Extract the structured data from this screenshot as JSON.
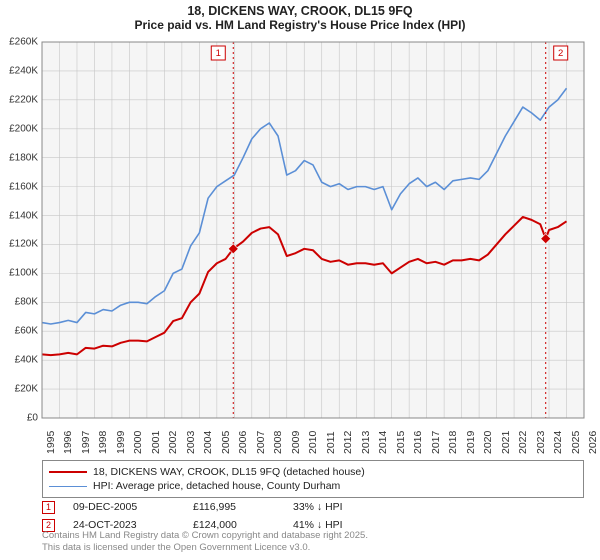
{
  "title_line1": "18, DICKENS WAY, CROOK, DL15 9FQ",
  "title_line2": "Price paid vs. HM Land Registry's House Price Index (HPI)",
  "background_color": "#ffffff",
  "plot_background": "#f5f5f5",
  "grid_color": "#c6c6c6",
  "axis_color": "#888888",
  "title_fontsize": 12.5,
  "label_fontsize": 10.5,
  "yaxis": {
    "min": 0,
    "max": 260000,
    "tick_step": 20000,
    "ticks": [
      "£0",
      "£20K",
      "£40K",
      "£60K",
      "£80K",
      "£100K",
      "£120K",
      "£140K",
      "£160K",
      "£180K",
      "£200K",
      "£220K",
      "£240K",
      "£260K"
    ]
  },
  "xaxis": {
    "min": 1995,
    "max": 2026,
    "ticks": [
      1995,
      1996,
      1997,
      1998,
      1999,
      2000,
      2001,
      2002,
      2003,
      2004,
      2005,
      2006,
      2007,
      2008,
      2009,
      2010,
      2011,
      2012,
      2013,
      2014,
      2015,
      2016,
      2017,
      2018,
      2019,
      2020,
      2021,
      2022,
      2023,
      2024,
      2025,
      2026
    ]
  },
  "series": [
    {
      "name": "hpi",
      "label": "HPI: Average price, detached house, County Durham",
      "color": "#5b8fd6",
      "line_width": 1.6,
      "marker": null,
      "data": [
        [
          1995.0,
          66000
        ],
        [
          1995.5,
          65000
        ],
        [
          1996.0,
          66000
        ],
        [
          1996.5,
          67500
        ],
        [
          1997.0,
          66000
        ],
        [
          1997.5,
          73000
        ],
        [
          1998.0,
          72000
        ],
        [
          1998.5,
          75000
        ],
        [
          1999.0,
          74000
        ],
        [
          1999.5,
          78000
        ],
        [
          2000.0,
          80000
        ],
        [
          2000.5,
          80000
        ],
        [
          2001.0,
          79000
        ],
        [
          2001.5,
          84000
        ],
        [
          2002.0,
          88000
        ],
        [
          2002.5,
          100000
        ],
        [
          2003.0,
          103000
        ],
        [
          2003.5,
          119000
        ],
        [
          2004.0,
          128000
        ],
        [
          2004.5,
          152000
        ],
        [
          2005.0,
          160000
        ],
        [
          2005.5,
          164000
        ],
        [
          2006.0,
          168000
        ],
        [
          2006.5,
          180000
        ],
        [
          2007.0,
          193000
        ],
        [
          2007.5,
          200000
        ],
        [
          2008.0,
          204000
        ],
        [
          2008.5,
          195000
        ],
        [
          2009.0,
          168000
        ],
        [
          2009.5,
          171000
        ],
        [
          2010.0,
          178000
        ],
        [
          2010.5,
          175000
        ],
        [
          2011.0,
          163000
        ],
        [
          2011.5,
          160000
        ],
        [
          2012.0,
          162000
        ],
        [
          2012.5,
          158000
        ],
        [
          2013.0,
          160000
        ],
        [
          2013.5,
          160000
        ],
        [
          2014.0,
          158000
        ],
        [
          2014.5,
          160000
        ],
        [
          2015.0,
          144000
        ],
        [
          2015.5,
          155000
        ],
        [
          2016.0,
          162000
        ],
        [
          2016.5,
          166000
        ],
        [
          2017.0,
          160000
        ],
        [
          2017.5,
          163000
        ],
        [
          2018.0,
          158000
        ],
        [
          2018.5,
          164000
        ],
        [
          2019.0,
          165000
        ],
        [
          2019.5,
          166000
        ],
        [
          2020.0,
          165000
        ],
        [
          2020.5,
          171000
        ],
        [
          2021.0,
          183000
        ],
        [
          2021.5,
          195000
        ],
        [
          2022.0,
          205000
        ],
        [
          2022.5,
          215000
        ],
        [
          2023.0,
          211000
        ],
        [
          2023.5,
          206000
        ],
        [
          2024.0,
          215000
        ],
        [
          2024.5,
          220000
        ],
        [
          2025.0,
          228000
        ]
      ]
    },
    {
      "name": "price_paid",
      "label": "18, DICKENS WAY, CROOK, DL15 9FQ (detached house)",
      "color": "#cc0000",
      "line_width": 2.0,
      "marker": {
        "style": "diamond",
        "size": 7,
        "fill": "#cc0000"
      },
      "data": [
        [
          1995.0,
          44000
        ],
        [
          1995.5,
          43500
        ],
        [
          1996.0,
          44000
        ],
        [
          1996.5,
          45000
        ],
        [
          1997.0,
          44000
        ],
        [
          1997.5,
          48500
        ],
        [
          1998.0,
          48000
        ],
        [
          1998.5,
          50000
        ],
        [
          1999.0,
          49500
        ],
        [
          1999.5,
          52000
        ],
        [
          2000.0,
          53500
        ],
        [
          2000.5,
          53500
        ],
        [
          2001.0,
          53000
        ],
        [
          2001.5,
          56000
        ],
        [
          2002.0,
          59000
        ],
        [
          2002.5,
          67000
        ],
        [
          2003.0,
          69000
        ],
        [
          2003.5,
          80000
        ],
        [
          2004.0,
          86000
        ],
        [
          2004.5,
          101000
        ],
        [
          2005.0,
          107000
        ],
        [
          2005.5,
          110000
        ],
        [
          2005.94,
          116995
        ],
        [
          2006.5,
          122000
        ],
        [
          2007.0,
          128000
        ],
        [
          2007.5,
          131000
        ],
        [
          2008.0,
          132000
        ],
        [
          2008.5,
          127000
        ],
        [
          2009.0,
          112000
        ],
        [
          2009.5,
          114000
        ],
        [
          2010.0,
          117000
        ],
        [
          2010.5,
          116000
        ],
        [
          2011.0,
          110000
        ],
        [
          2011.5,
          108000
        ],
        [
          2012.0,
          109000
        ],
        [
          2012.5,
          106000
        ],
        [
          2013.0,
          107000
        ],
        [
          2013.5,
          107000
        ],
        [
          2014.0,
          106000
        ],
        [
          2014.5,
          107000
        ],
        [
          2015.0,
          100000
        ],
        [
          2015.5,
          104000
        ],
        [
          2016.0,
          108000
        ],
        [
          2016.5,
          110000
        ],
        [
          2017.0,
          107000
        ],
        [
          2017.5,
          108000
        ],
        [
          2018.0,
          106000
        ],
        [
          2018.5,
          109000
        ],
        [
          2019.0,
          109000
        ],
        [
          2019.5,
          110000
        ],
        [
          2020.0,
          109000
        ],
        [
          2020.5,
          113000
        ],
        [
          2021.0,
          120000
        ],
        [
          2021.5,
          127000
        ],
        [
          2022.0,
          133000
        ],
        [
          2022.5,
          139000
        ],
        [
          2023.0,
          137000
        ],
        [
          2023.5,
          134000
        ],
        [
          2023.81,
          124000
        ],
        [
          2024.0,
          130000
        ],
        [
          2024.5,
          132000
        ],
        [
          2025.0,
          136000
        ]
      ]
    }
  ],
  "sale_events": [
    {
      "n": "1",
      "year": 2005.94,
      "price": 116995,
      "date": "09-DEC-2005",
      "price_label": "£116,995",
      "pct_label": "33% ↓ HPI",
      "marker_color": "#cc0000",
      "vline_color": "#cc0000"
    },
    {
      "n": "2",
      "year": 2023.81,
      "price": 124000,
      "date": "24-OCT-2023",
      "price_label": "£124,000",
      "pct_label": "41% ↓ HPI",
      "marker_color": "#cc0000",
      "vline_color": "#cc0000"
    }
  ],
  "vline_dash": "2,3",
  "vline_width": 1,
  "footer_line1": "Contains HM Land Registry data © Crown copyright and database right 2025.",
  "footer_line2": "This data is licensed under the Open Government Licence v3.0."
}
